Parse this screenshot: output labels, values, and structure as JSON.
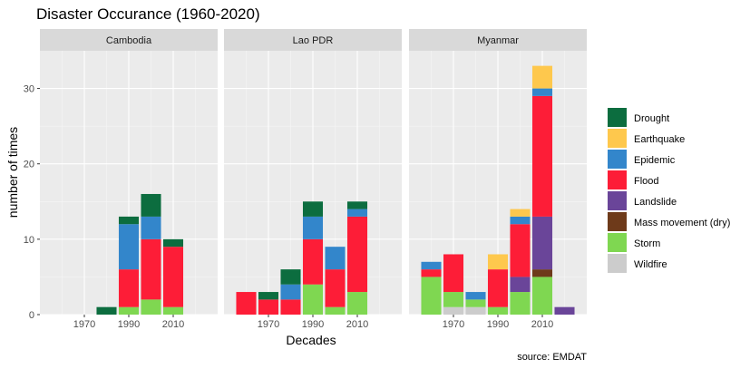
{
  "chart_data": {
    "type": "bar",
    "stacked": true,
    "title": "Disaster Occurance (1960-2020)",
    "xlabel": "Decades",
    "ylabel": "number of times",
    "caption": "source: EMDAT",
    "xlim": [
      1950,
      2030
    ],
    "ylim": [
      0,
      35
    ],
    "x_ticks": [
      1970,
      1990,
      2010
    ],
    "y_ticks": [
      0,
      10,
      20,
      30
    ],
    "grid": true,
    "legend_position": "right",
    "decades": [
      1960,
      1970,
      1980,
      1990,
      2000,
      2010,
      2020
    ],
    "series": [
      {
        "name": "Drought",
        "color": "#0c6d3f"
      },
      {
        "name": "Earthquake",
        "color": "#fec84d"
      },
      {
        "name": "Epidemic",
        "color": "#3386cb"
      },
      {
        "name": "Flood",
        "color": "#fd1d37"
      },
      {
        "name": "Landslide",
        "color": "#6a4599"
      },
      {
        "name": "Mass movement (dry)",
        "color": "#6e3a1a"
      },
      {
        "name": "Storm",
        "color": "#7fd751"
      },
      {
        "name": "Wildfire",
        "color": "#cccccc"
      }
    ],
    "stack_order": [
      "Wildfire",
      "Storm",
      "Mass movement (dry)",
      "Landslide",
      "Flood",
      "Epidemic",
      "Earthquake",
      "Drought"
    ],
    "panels": [
      {
        "name": "Cambodia",
        "values": {
          "Drought": [
            0,
            0,
            1,
            1,
            3,
            1,
            0
          ],
          "Earthquake": [
            0,
            0,
            0,
            0,
            0,
            0,
            0
          ],
          "Epidemic": [
            0,
            0,
            0,
            6,
            3,
            0,
            0
          ],
          "Flood": [
            0,
            0,
            0,
            5,
            8,
            8,
            0
          ],
          "Landslide": [
            0,
            0,
            0,
            0,
            0,
            0,
            0
          ],
          "Mass movement (dry)": [
            0,
            0,
            0,
            0,
            0,
            0,
            0
          ],
          "Storm": [
            0,
            0,
            0,
            1,
            2,
            1,
            0
          ],
          "Wildfire": [
            0,
            0,
            0,
            0,
            0,
            0,
            0
          ]
        }
      },
      {
        "name": "Lao PDR",
        "values": {
          "Drought": [
            0,
            1,
            2,
            2,
            0,
            1,
            0
          ],
          "Earthquake": [
            0,
            0,
            0,
            0,
            0,
            0,
            0
          ],
          "Epidemic": [
            0,
            0,
            2,
            3,
            3,
            1,
            0
          ],
          "Flood": [
            3,
            2,
            2,
            6,
            5,
            10,
            0
          ],
          "Landslide": [
            0,
            0,
            0,
            0,
            0,
            0,
            0
          ],
          "Mass movement (dry)": [
            0,
            0,
            0,
            0,
            0,
            0,
            0
          ],
          "Storm": [
            0,
            0,
            0,
            4,
            1,
            3,
            0
          ],
          "Wildfire": [
            0,
            0,
            0,
            0,
            0,
            0,
            0
          ]
        }
      },
      {
        "name": "Myanmar",
        "values": {
          "Drought": [
            0,
            0,
            0,
            0,
            0,
            0,
            0
          ],
          "Earthquake": [
            0,
            0,
            0,
            2,
            1,
            3,
            0
          ],
          "Epidemic": [
            1,
            0,
            1,
            0,
            1,
            1,
            0
          ],
          "Flood": [
            1,
            5,
            0,
            5,
            7,
            16,
            0
          ],
          "Landslide": [
            0,
            0,
            0,
            0,
            2,
            7,
            1
          ],
          "Mass movement (dry)": [
            0,
            0,
            0,
            0,
            0,
            1,
            0
          ],
          "Storm": [
            5,
            2,
            1,
            1,
            3,
            5,
            0
          ],
          "Wildfire": [
            0,
            1,
            1,
            0,
            0,
            0,
            0
          ]
        }
      }
    ]
  }
}
